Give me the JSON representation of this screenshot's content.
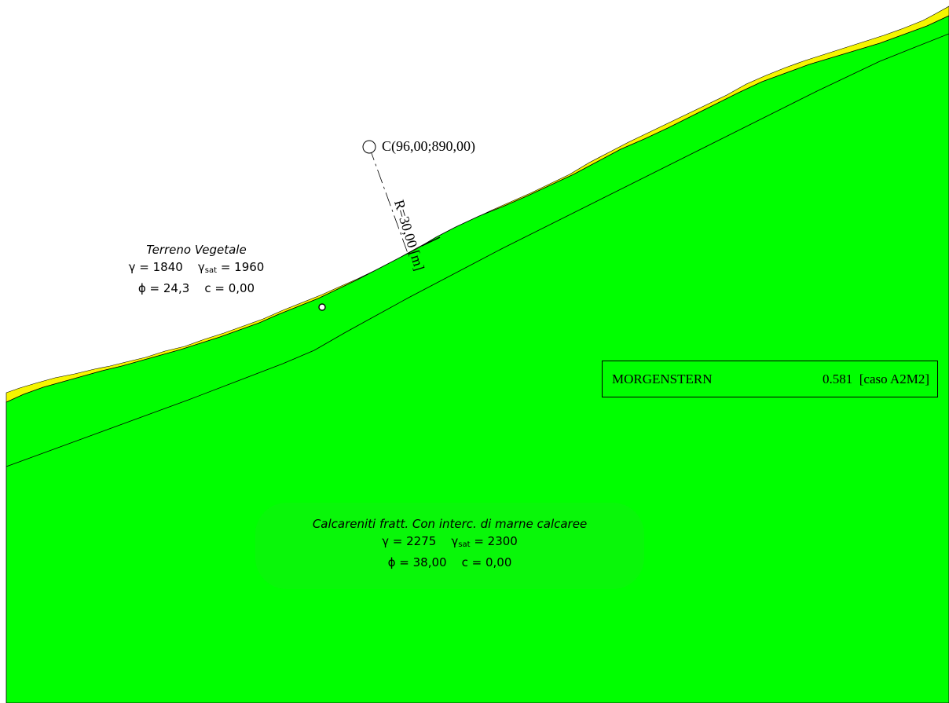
{
  "layers": [
    {
      "name": "Terreno Vegetale",
      "gamma_label": "γ = 1840",
      "gamma_sat_prefix": "γ",
      "gamma_sat_sub": "sat",
      "gamma_sat_value": " = 1960",
      "phi_c_label": "ϕ = 24,3    c = 0,00",
      "color": "#f5f500"
    },
    {
      "name": "Calcareniti fratt. Con interc. di marne calcaree",
      "gamma_label": "γ = 2275",
      "gamma_sat_prefix": "γ",
      "gamma_sat_sub": "sat",
      "gamma_sat_value": " = 2300",
      "phi_c_label": "ϕ = 38,00    c = 0,00",
      "color": "#00ff00"
    }
  ],
  "center": {
    "label": "C(96,00;890,00)"
  },
  "radius": {
    "label": "R=30,00 [m]"
  },
  "result": {
    "method": "MORGENSTERN",
    "value": "0.581  [caso A2M2]"
  },
  "colors": {
    "ground": "#00ff00",
    "topsoil": "#f5f500",
    "outline": "#000000"
  }
}
